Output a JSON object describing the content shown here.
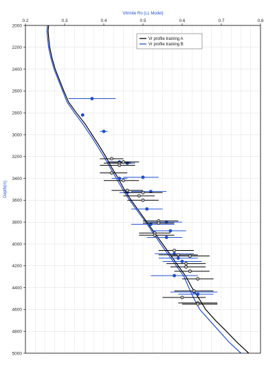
{
  "chart_data": {
    "type": "scatter",
    "title": "",
    "xlabel": "Vitrinite Ro (LL Model)",
    "ylabel": "Depth(m)",
    "xlim": [
      0.2,
      0.8
    ],
    "ylim": [
      2000,
      5000
    ],
    "y_inverted": true,
    "x_axis_position": "top",
    "xticks": [
      0.2,
      0.3,
      0.4,
      0.5,
      0.6,
      0.7,
      0.8
    ],
    "xtick_labels": [
      "0.2",
      "0.3",
      "0.4",
      "0.5",
      "0.6",
      "0.7",
      "0.8"
    ],
    "yticks": [
      2000,
      2200,
      2400,
      2600,
      2800,
      3000,
      3200,
      3400,
      3600,
      3800,
      4000,
      4200,
      4400,
      4600,
      4800,
      5000
    ],
    "ytick_labels": [
      "2000",
      "2200",
      "2400",
      "2600",
      "2800",
      "3000",
      "3200",
      "3400",
      "3600",
      "3800",
      "4000",
      "4200",
      "4400",
      "4600",
      "4800",
      "5000"
    ],
    "grid": true,
    "legend_position": "top-center",
    "series": [
      {
        "name": "Vr profile training A",
        "kind": "line",
        "color": "#000000",
        "points": [
          [
            0.259,
            2000
          ],
          [
            0.258,
            2050
          ],
          [
            0.259,
            2100
          ],
          [
            0.262,
            2200
          ],
          [
            0.268,
            2300
          ],
          [
            0.276,
            2400
          ],
          [
            0.287,
            2500
          ],
          [
            0.298,
            2600
          ],
          [
            0.31,
            2700
          ],
          [
            0.33,
            2800
          ],
          [
            0.352,
            2900
          ],
          [
            0.37,
            3000
          ],
          [
            0.388,
            3100
          ],
          [
            0.405,
            3200
          ],
          [
            0.42,
            3300
          ],
          [
            0.437,
            3400
          ],
          [
            0.452,
            3500
          ],
          [
            0.47,
            3600
          ],
          [
            0.49,
            3700
          ],
          [
            0.51,
            3800
          ],
          [
            0.53,
            3900
          ],
          [
            0.55,
            4000
          ],
          [
            0.57,
            4100
          ],
          [
            0.59,
            4200
          ],
          [
            0.61,
            4300
          ],
          [
            0.625,
            4400
          ],
          [
            0.643,
            4500
          ],
          [
            0.66,
            4600
          ],
          [
            0.685,
            4700
          ],
          [
            0.713,
            4800
          ],
          [
            0.74,
            4900
          ],
          [
            0.77,
            5000
          ]
        ]
      },
      {
        "name": "Vr profile training B",
        "kind": "line",
        "color": "#1f4fd0",
        "points": [
          [
            0.256,
            2000
          ],
          [
            0.255,
            2050
          ],
          [
            0.256,
            2100
          ],
          [
            0.259,
            2200
          ],
          [
            0.265,
            2300
          ],
          [
            0.273,
            2400
          ],
          [
            0.284,
            2500
          ],
          [
            0.295,
            2600
          ],
          [
            0.306,
            2700
          ],
          [
            0.325,
            2800
          ],
          [
            0.346,
            2900
          ],
          [
            0.365,
            3000
          ],
          [
            0.383,
            3100
          ],
          [
            0.4,
            3200
          ],
          [
            0.416,
            3300
          ],
          [
            0.432,
            3400
          ],
          [
            0.448,
            3500
          ],
          [
            0.466,
            3600
          ],
          [
            0.486,
            3700
          ],
          [
            0.507,
            3800
          ],
          [
            0.526,
            3900
          ],
          [
            0.545,
            4000
          ],
          [
            0.565,
            4100
          ],
          [
            0.585,
            4200
          ],
          [
            0.605,
            4300
          ],
          [
            0.617,
            4400
          ],
          [
            0.63,
            4500
          ],
          [
            0.645,
            4600
          ],
          [
            0.67,
            4700
          ],
          [
            0.695,
            4800
          ],
          [
            0.72,
            4900
          ],
          [
            0.75,
            5000
          ]
        ]
      },
      {
        "name": "",
        "kind": "measured",
        "color": "#1f4fd0",
        "points": [
          {
            "x": 0.37,
            "y": 2670,
            "xmin": 0.31,
            "xmax": 0.43
          },
          {
            "x": 0.346,
            "y": 2820,
            "xmin": 0.346,
            "xmax": 0.346
          },
          {
            "x": 0.4,
            "y": 2970,
            "xmin": 0.39,
            "xmax": 0.41
          },
          {
            "x": 0.44,
            "y": 3250,
            "xmin": 0.41,
            "xmax": 0.47
          },
          {
            "x": 0.46,
            "y": 3260,
            "xmin": 0.42,
            "xmax": 0.48
          },
          {
            "x": 0.5,
            "y": 3390,
            "xmin": 0.45,
            "xmax": 0.54
          },
          {
            "x": 0.44,
            "y": 3400,
            "xmin": 0.42,
            "xmax": 0.46
          },
          {
            "x": 0.52,
            "y": 3520,
            "xmin": 0.47,
            "xmax": 0.56
          },
          {
            "x": 0.46,
            "y": 3530,
            "xmin": 0.44,
            "xmax": 0.5
          },
          {
            "x": 0.51,
            "y": 3680,
            "xmin": 0.47,
            "xmax": 0.55
          },
          {
            "x": 0.52,
            "y": 3820,
            "xmin": 0.47,
            "xmax": 0.58
          },
          {
            "x": 0.56,
            "y": 3800,
            "xmin": 0.51,
            "xmax": 0.6
          },
          {
            "x": 0.57,
            "y": 3880,
            "xmin": 0.52,
            "xmax": 0.61
          },
          {
            "x": 0.56,
            "y": 3940,
            "xmin": 0.51,
            "xmax": 0.6
          },
          {
            "x": 0.58,
            "y": 4090,
            "xmin": 0.53,
            "xmax": 0.63
          },
          {
            "x": 0.59,
            "y": 4130,
            "xmin": 0.54,
            "xmax": 0.64
          },
          {
            "x": 0.6,
            "y": 4160,
            "xmin": 0.55,
            "xmax": 0.65
          },
          {
            "x": 0.58,
            "y": 4290,
            "xmin": 0.52,
            "xmax": 0.64
          },
          {
            "x": 0.63,
            "y": 4440,
            "xmin": 0.57,
            "xmax": 0.69
          },
          {
            "x": 0.64,
            "y": 4460,
            "xmin": 0.59,
            "xmax": 0.68
          }
        ]
      },
      {
        "name": "",
        "kind": "measured",
        "color": "#000000",
        "points": [
          {
            "x": 0.42,
            "y": 3220,
            "xmin": 0.39,
            "xmax": 0.45
          },
          {
            "x": 0.44,
            "y": 3260,
            "xmin": 0.4,
            "xmax": 0.47
          },
          {
            "x": 0.45,
            "y": 3250,
            "xmin": 0.41,
            "xmax": 0.49
          },
          {
            "x": 0.44,
            "y": 3280,
            "xmin": 0.39,
            "xmax": 0.48
          },
          {
            "x": 0.42,
            "y": 3350,
            "xmin": 0.39,
            "xmax": 0.46
          },
          {
            "x": 0.45,
            "y": 3420,
            "xmin": 0.4,
            "xmax": 0.49
          },
          {
            "x": 0.46,
            "y": 3510,
            "xmin": 0.42,
            "xmax": 0.5
          },
          {
            "x": 0.5,
            "y": 3530,
            "xmin": 0.45,
            "xmax": 0.55
          },
          {
            "x": 0.49,
            "y": 3560,
            "xmin": 0.45,
            "xmax": 0.53
          },
          {
            "x": 0.5,
            "y": 3600,
            "xmin": 0.46,
            "xmax": 0.54
          },
          {
            "x": 0.54,
            "y": 3790,
            "xmin": 0.5,
            "xmax": 0.59
          },
          {
            "x": 0.54,
            "y": 3810,
            "xmin": 0.5,
            "xmax": 0.58
          },
          {
            "x": 0.53,
            "y": 3900,
            "xmin": 0.49,
            "xmax": 0.57
          },
          {
            "x": 0.53,
            "y": 3920,
            "xmin": 0.49,
            "xmax": 0.58
          },
          {
            "x": 0.58,
            "y": 4060,
            "xmin": 0.54,
            "xmax": 0.63
          },
          {
            "x": 0.59,
            "y": 4100,
            "xmin": 0.54,
            "xmax": 0.64
          },
          {
            "x": 0.62,
            "y": 4110,
            "xmin": 0.57,
            "xmax": 0.67
          },
          {
            "x": 0.61,
            "y": 4180,
            "xmin": 0.56,
            "xmax": 0.66
          },
          {
            "x": 0.61,
            "y": 4210,
            "xmin": 0.57,
            "xmax": 0.66
          },
          {
            "x": 0.62,
            "y": 4250,
            "xmin": 0.58,
            "xmax": 0.67
          },
          {
            "x": 0.64,
            "y": 4320,
            "xmin": 0.6,
            "xmax": 0.68
          },
          {
            "x": 0.63,
            "y": 4430,
            "xmin": 0.58,
            "xmax": 0.68
          },
          {
            "x": 0.6,
            "y": 4490,
            "xmin": 0.55,
            "xmax": 0.66
          },
          {
            "x": 0.64,
            "y": 4540,
            "xmin": 0.59,
            "xmax": 0.69
          },
          {
            "x": 0.64,
            "y": 4550,
            "xmin": 0.6,
            "xmax": 0.69
          }
        ]
      }
    ]
  }
}
